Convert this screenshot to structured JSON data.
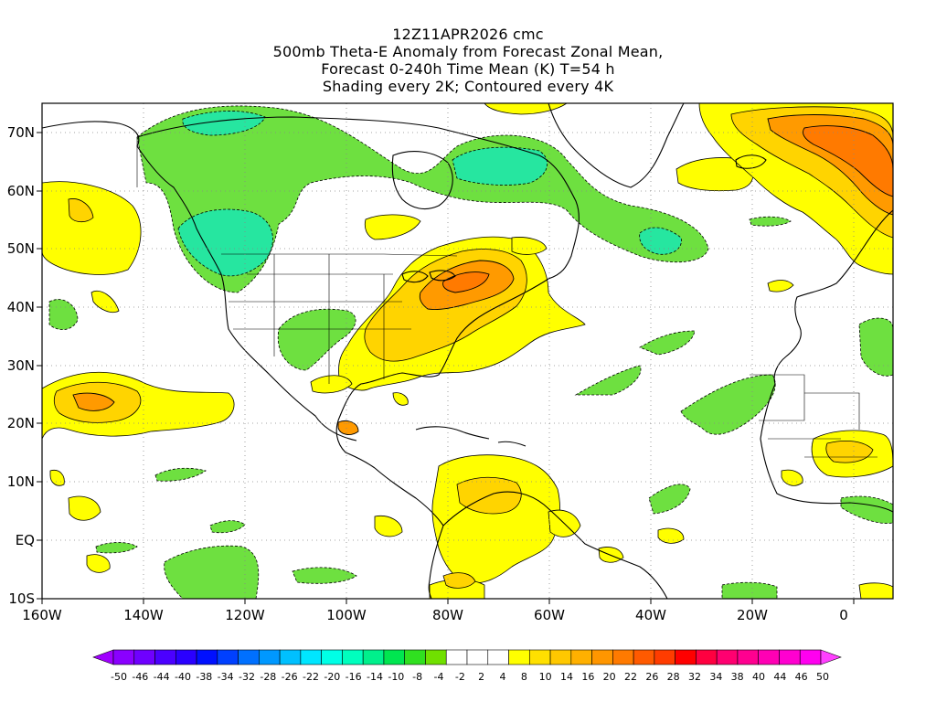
{
  "title": {
    "line1": "12Z11APR2026 cmc",
    "line2": "500mb Theta-E Anomaly from Forecast Zonal Mean,",
    "line3": "Forecast 0-240h Time Mean (K) T=54 h",
    "line4": "Shading every 2K; Contoured every 4K"
  },
  "lat_labels": [
    "70N",
    "60N",
    "50N",
    "40N",
    "30N",
    "20N",
    "10N",
    "EQ",
    "10S"
  ],
  "lon_labels": [
    "160W",
    "140W",
    "120W",
    "100W",
    "80W",
    "60W",
    "40W",
    "20W",
    "0"
  ],
  "colorbar": {
    "labels": [
      "-50",
      "-46",
      "-44",
      "-40",
      "-38",
      "-34",
      "-32",
      "-28",
      "-26",
      "-22",
      "-20",
      "-16",
      "-14",
      "-10",
      "-8",
      "-4",
      "-2",
      "2",
      "4",
      "8",
      "10",
      "14",
      "16",
      "20",
      "22",
      "26",
      "28",
      "32",
      "34",
      "38",
      "40",
      "44",
      "46",
      "50"
    ],
    "colors": [
      "#8a00ff",
      "#6f00ff",
      "#4b00ff",
      "#2a00ff",
      "#0010ff",
      "#0040ff",
      "#0070ff",
      "#0098ff",
      "#00c0ff",
      "#00e6ff",
      "#00ffe6",
      "#00ffbe",
      "#00f08c",
      "#00e650",
      "#30e020",
      "#70e000",
      "#ffffff",
      "#ffffff",
      "#ffffff",
      "#ffff00",
      "#ffe000",
      "#ffc800",
      "#ffb000",
      "#ff9600",
      "#ff7a00",
      "#ff5a00",
      "#ff3c00",
      "#ff0000",
      "#ff0040",
      "#ff0070",
      "#ff0090",
      "#ff00b4",
      "#ff00d0",
      "#ff00f0"
    ]
  },
  "colors": {
    "green": "#6ee040",
    "cyan_green": "#26e6a0",
    "yellow": "#ffff00",
    "yellow_orange": "#ffd400",
    "orange": "#ff9a00",
    "deep_orange": "#ff7a00"
  }
}
